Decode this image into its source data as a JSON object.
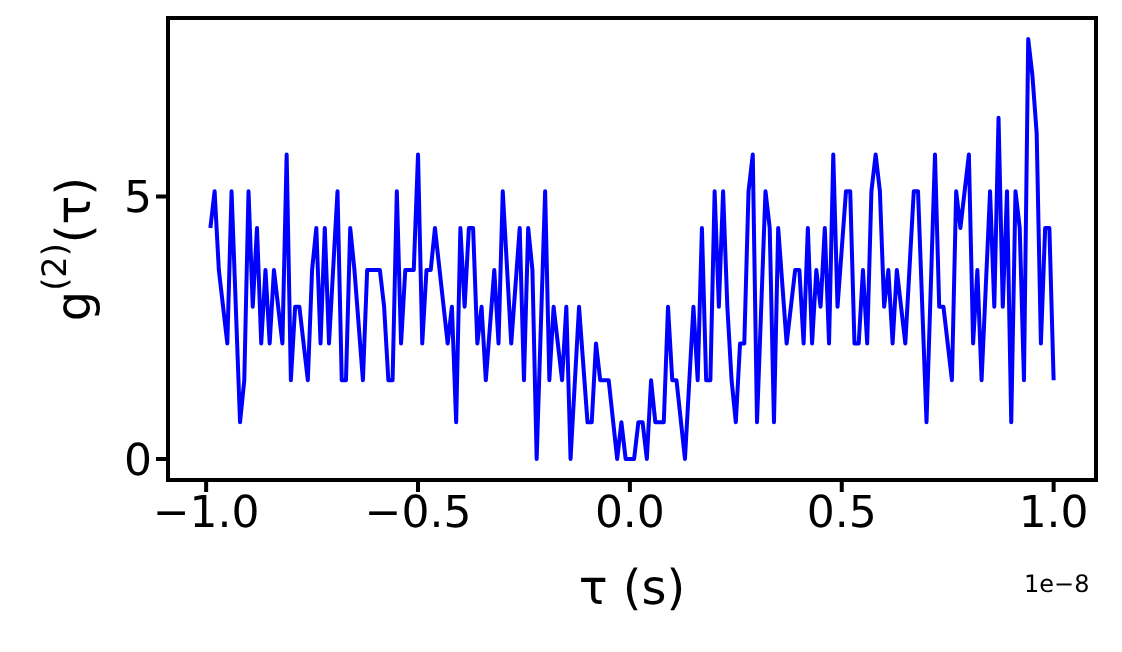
{
  "chart_data": {
    "type": "line",
    "xlabel": "τ (s)",
    "ylabel": "g$^{(2)}$(τ)",
    "annotations": [
      "1e−8"
    ],
    "xlim": [
      -1.09,
      1.1
    ],
    "ylim": [
      -0.4,
      8.4
    ],
    "xticks": [
      {
        "value": -1,
        "label": "−1.0"
      },
      {
        "value": -0.5,
        "label": "−0.5"
      },
      {
        "value": 0,
        "label": "0.0"
      },
      {
        "value": 0.5,
        "label": "0.5"
      },
      {
        "value": 1,
        "label": "1.0"
      }
    ],
    "yticks": [
      0,
      5
    ],
    "marker": "none",
    "line_style": "solid",
    "series": [
      {
        "color": "#0000ff",
        "x": [
          -0.99,
          -0.98,
          -0.97,
          -0.95,
          -0.94,
          -0.92,
          -0.91,
          -0.9,
          -0.89,
          -0.88,
          -0.87,
          -0.86,
          -0.85,
          -0.84,
          -0.82,
          -0.81,
          -0.8,
          -0.79,
          -0.78,
          -0.76,
          -0.75,
          -0.74,
          -0.73,
          -0.72,
          -0.71,
          -0.69,
          -0.68,
          -0.67,
          -0.66,
          -0.65,
          -0.63,
          -0.62,
          -0.59,
          -0.58,
          -0.57,
          -0.56,
          -0.55,
          -0.54,
          -0.53,
          -0.51,
          -0.5,
          -0.49,
          -0.48,
          -0.47,
          -0.46,
          -0.43,
          -0.42,
          -0.41,
          -0.4,
          -0.39,
          -0.38,
          -0.37,
          -0.36,
          -0.35,
          -0.34,
          -0.32,
          -0.31,
          -0.3,
          -0.28,
          -0.26,
          -0.25,
          -0.24,
          -0.23,
          -0.22,
          -0.2,
          -0.19,
          -0.18,
          -0.16,
          -0.15,
          -0.14,
          -0.12,
          -0.1,
          -0.09,
          -0.08,
          -0.07,
          -0.05,
          -0.03,
          -0.02,
          -0.01,
          0.01,
          0.02,
          0.03,
          0.04,
          0.05,
          0.06,
          0.08,
          0.09,
          0.1,
          0.11,
          0.13,
          0.15,
          0.16,
          0.17,
          0.18,
          0.19,
          0.2,
          0.21,
          0.22,
          0.23,
          0.24,
          0.25,
          0.26,
          0.27,
          0.28,
          0.29,
          0.3,
          0.32,
          0.33,
          0.34,
          0.35,
          0.37,
          0.39,
          0.4,
          0.41,
          0.42,
          0.43,
          0.44,
          0.45,
          0.46,
          0.47,
          0.48,
          0.49,
          0.51,
          0.52,
          0.53,
          0.54,
          0.55,
          0.56,
          0.57,
          0.58,
          0.59,
          0.6,
          0.61,
          0.62,
          0.63,
          0.65,
          0.67,
          0.68,
          0.7,
          0.72,
          0.73,
          0.74,
          0.76,
          0.77,
          0.78,
          0.8,
          0.81,
          0.82,
          0.83,
          0.85,
          0.86,
          0.87,
          0.88,
          0.89,
          0.9,
          0.91,
          0.92,
          0.93,
          0.94,
          0.95,
          0.96,
          0.97,
          0.98,
          0.99,
          1.0
        ],
        "values": [
          4.4,
          5.1,
          3.6,
          2.2,
          5.1,
          0.7,
          1.5,
          5.1,
          2.9,
          4.4,
          2.2,
          3.6,
          2.2,
          3.6,
          2.2,
          5.8,
          1.5,
          2.9,
          2.9,
          1.5,
          3.6,
          4.4,
          2.2,
          4.4,
          2.2,
          5.1,
          1.5,
          1.5,
          4.4,
          3.6,
          1.5,
          3.6,
          3.6,
          2.9,
          1.5,
          1.5,
          5.1,
          2.2,
          3.6,
          3.6,
          5.8,
          2.2,
          3.6,
          3.6,
          4.4,
          2.2,
          2.9,
          0.7,
          4.4,
          2.9,
          4.4,
          4.4,
          2.2,
          2.9,
          1.5,
          3.6,
          2.2,
          5.1,
          2.2,
          4.4,
          1.5,
          4.4,
          3.6,
          0,
          5.1,
          1.5,
          2.9,
          1.5,
          2.9,
          0,
          2.9,
          0.7,
          0.7,
          2.2,
          1.5,
          1.5,
          0,
          0.7,
          0,
          0,
          0.7,
          0.7,
          0,
          1.5,
          0.7,
          0.7,
          2.9,
          1.5,
          1.5,
          0,
          2.9,
          1.5,
          4.4,
          1.5,
          1.5,
          5.1,
          2.9,
          5.1,
          2.9,
          1.5,
          0.7,
          2.2,
          2.2,
          5.1,
          5.8,
          0.7,
          5.1,
          4.4,
          0.7,
          4.4,
          2.2,
          3.6,
          3.6,
          2.2,
          4.4,
          2.2,
          3.6,
          2.9,
          4.4,
          2.2,
          5.8,
          2.9,
          5.1,
          5.1,
          2.2,
          2.2,
          3.6,
          2.2,
          5.1,
          5.8,
          5.1,
          2.9,
          3.6,
          2.2,
          3.6,
          2.2,
          5.1,
          5.1,
          0.7,
          5.8,
          2.9,
          2.9,
          1.5,
          5.1,
          4.4,
          5.8,
          2.2,
          3.6,
          1.5,
          5.1,
          2.9,
          6.5,
          2.9,
          5.1,
          0.7,
          5.1,
          4.4,
          1.5,
          8.0,
          7.3,
          6.2,
          2.2,
          4.4,
          4.4,
          1.5
        ]
      }
    ]
  }
}
